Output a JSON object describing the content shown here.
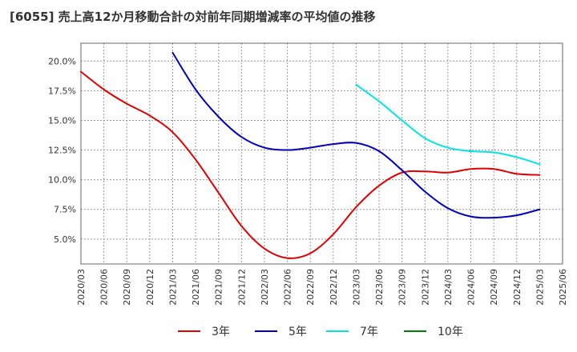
{
  "chart_data": {
    "type": "line",
    "title": "[6055]  売上高12か月移動合計の対前年同期増減率の平均値の推移",
    "xlabel": "",
    "ylabel": "",
    "x_ticks": [
      "2020/03",
      "2020/06",
      "2020/09",
      "2020/12",
      "2021/03",
      "2021/06",
      "2021/09",
      "2021/12",
      "2022/03",
      "2022/06",
      "2022/09",
      "2022/12",
      "2023/03",
      "2023/06",
      "2023/09",
      "2023/12",
      "2024/03",
      "2024/06",
      "2024/09",
      "2024/12",
      "2025/03",
      "2025/06"
    ],
    "y_ticks": [
      "5.0%",
      "7.5%",
      "10.0%",
      "12.5%",
      "15.0%",
      "17.5%",
      "20.0%"
    ],
    "ylim": [
      2.9,
      21.5
    ],
    "grid": true,
    "legend_position": "bottom",
    "series": [
      {
        "name": "3年",
        "color": "#e00000",
        "points": [
          [
            "2020/03",
            19.1
          ],
          [
            "2020/06",
            17.6
          ],
          [
            "2020/09",
            16.4
          ],
          [
            "2020/12",
            15.4
          ],
          [
            "2021/03",
            14.0
          ],
          [
            "2021/06",
            11.7
          ],
          [
            "2021/09",
            8.9
          ],
          [
            "2021/12",
            6.1
          ],
          [
            "2022/03",
            4.2
          ],
          [
            "2022/06",
            3.4
          ],
          [
            "2022/09",
            3.8
          ],
          [
            "2022/12",
            5.4
          ],
          [
            "2023/03",
            7.7
          ],
          [
            "2023/06",
            9.5
          ],
          [
            "2023/09",
            10.6
          ],
          [
            "2023/12",
            10.7
          ],
          [
            "2024/03",
            10.6
          ],
          [
            "2024/06",
            10.9
          ],
          [
            "2024/09",
            10.9
          ],
          [
            "2024/12",
            10.5
          ],
          [
            "2025/03",
            10.4
          ]
        ]
      },
      {
        "name": "5年",
        "color": "#0000c0",
        "points": [
          [
            "2021/03",
            20.7
          ],
          [
            "2021/06",
            17.6
          ],
          [
            "2021/09",
            15.3
          ],
          [
            "2021/12",
            13.6
          ],
          [
            "2022/03",
            12.7
          ],
          [
            "2022/06",
            12.5
          ],
          [
            "2022/09",
            12.7
          ],
          [
            "2022/12",
            13.0
          ],
          [
            "2023/03",
            13.1
          ],
          [
            "2023/06",
            12.4
          ],
          [
            "2023/09",
            10.8
          ],
          [
            "2023/12",
            9.0
          ],
          [
            "2024/03",
            7.6
          ],
          [
            "2024/06",
            6.9
          ],
          [
            "2024/09",
            6.8
          ],
          [
            "2024/12",
            7.0
          ],
          [
            "2025/03",
            7.5
          ]
        ]
      },
      {
        "name": "7年",
        "color": "#00e5e5",
        "points": [
          [
            "2023/03",
            18.0
          ],
          [
            "2023/06",
            16.6
          ],
          [
            "2023/09",
            15.0
          ],
          [
            "2023/12",
            13.5
          ],
          [
            "2024/03",
            12.7
          ],
          [
            "2024/06",
            12.4
          ],
          [
            "2024/09",
            12.3
          ],
          [
            "2024/12",
            11.9
          ],
          [
            "2025/03",
            11.3
          ]
        ]
      },
      {
        "name": "10年",
        "color": "#008000",
        "points": []
      }
    ]
  }
}
